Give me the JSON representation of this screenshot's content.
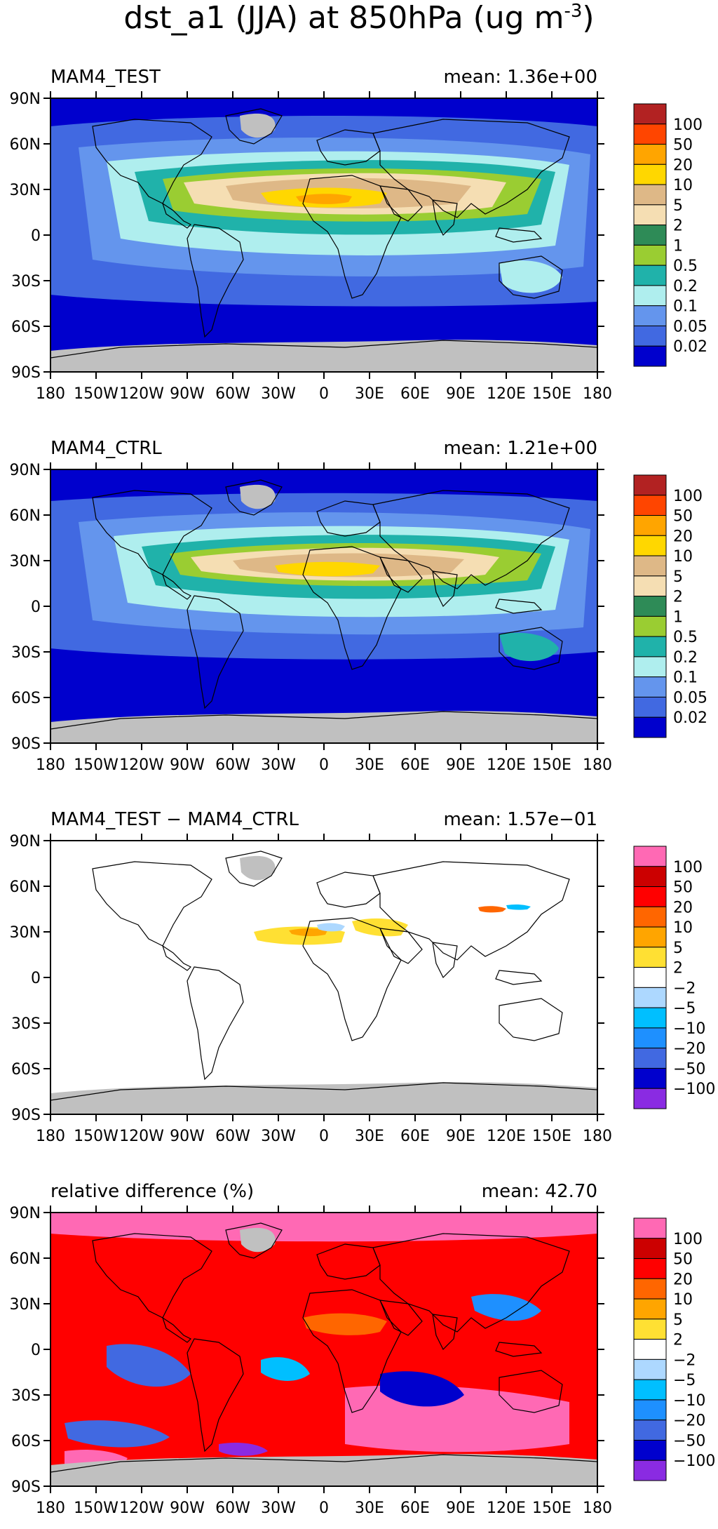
{
  "figure_title_main": "dst_a1 (JJA) at 850hPa (ug m",
  "figure_title_exp": "-3",
  "figure_title_close": ")",
  "x_ticks": [
    "180",
    "150W",
    "120W",
    "90W",
    "60W",
    "30W",
    "0",
    "30E",
    "60E",
    "90E",
    "120E",
    "150E",
    "180"
  ],
  "y_ticks": [
    "90N",
    "60N",
    "30N",
    "0",
    "30S",
    "60S",
    "90S"
  ],
  "colors": {
    "land_gray": "#c0c0c0",
    "coast": "#000000"
  },
  "chart_data": [
    {
      "type": "heatmap",
      "panel_label": "MAM4_TEST",
      "mean_label": "mean:  1.36e+00",
      "mean_value": 1.36,
      "xlim": [
        -180,
        180
      ],
      "ylim": [
        -90,
        90
      ],
      "colorbar_labels": [
        "100",
        "50",
        "20",
        "10",
        "5",
        "2",
        "1",
        "0.5",
        "0.2",
        "0.1",
        "0.05",
        "0.02"
      ],
      "colorbar_colors": [
        "#b22222",
        "#ff4500",
        "#ffa500",
        "#ffd700",
        "#deb887",
        "#f5deb3",
        "#2e8b57",
        "#9acd32",
        "#20b2aa",
        "#afeeee",
        "#6495ed",
        "#4169e1",
        "#0000cd"
      ]
    },
    {
      "type": "heatmap",
      "panel_label": "MAM4_CTRL",
      "mean_label": "mean:  1.21e+00",
      "mean_value": 1.21,
      "xlim": [
        -180,
        180
      ],
      "ylim": [
        -90,
        90
      ],
      "colorbar_labels": [
        "100",
        "50",
        "20",
        "10",
        "5",
        "2",
        "1",
        "0.5",
        "0.2",
        "0.1",
        "0.05",
        "0.02"
      ],
      "colorbar_colors": [
        "#b22222",
        "#ff4500",
        "#ffa500",
        "#ffd700",
        "#deb887",
        "#f5deb3",
        "#2e8b57",
        "#9acd32",
        "#20b2aa",
        "#afeeee",
        "#6495ed",
        "#4169e1",
        "#0000cd"
      ]
    },
    {
      "type": "heatmap",
      "panel_label": "MAM4_TEST − MAM4_CTRL",
      "mean_label": "mean:  1.57e−01",
      "mean_value": 0.157,
      "xlim": [
        -180,
        180
      ],
      "ylim": [
        -90,
        90
      ],
      "colorbar_labels": [
        "100",
        "50",
        "20",
        "10",
        "5",
        "2",
        "−2",
        "−5",
        "−10",
        "−20",
        "−50",
        "−100"
      ],
      "colorbar_colors": [
        "#ff69b4",
        "#cc0000",
        "#ff0000",
        "#ff6600",
        "#ffa500",
        "#ffe033",
        "#ffffff",
        "#add8ff",
        "#00bfff",
        "#1e90ff",
        "#4169e1",
        "#0000cd",
        "#8a2be2"
      ]
    },
    {
      "type": "heatmap",
      "panel_label": "relative difference (%)",
      "mean_label": "mean:  42.70",
      "mean_value": 42.7,
      "xlim": [
        -180,
        180
      ],
      "ylim": [
        -90,
        90
      ],
      "colorbar_labels": [
        "100",
        "50",
        "20",
        "10",
        "5",
        "2",
        "−2",
        "−5",
        "−10",
        "−20",
        "−50",
        "−100"
      ],
      "colorbar_colors": [
        "#ff69b4",
        "#cc0000",
        "#ff0000",
        "#ff6600",
        "#ffa500",
        "#ffe033",
        "#ffffff",
        "#add8ff",
        "#00bfff",
        "#1e90ff",
        "#4169e1",
        "#0000cd",
        "#8a2be2"
      ]
    }
  ]
}
